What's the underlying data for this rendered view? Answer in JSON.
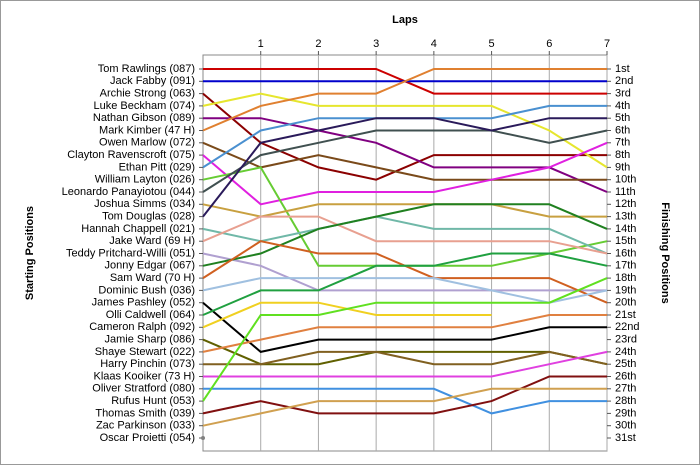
{
  "chart_data": {
    "type": "bump",
    "x_label": "Laps",
    "y_label": "Starting Positions",
    "y2_label": "Finishing Positions",
    "xlim": [
      0,
      7
    ],
    "xticks": [
      1,
      2,
      3,
      4,
      5,
      6,
      7
    ],
    "ylim": [
      1,
      31
    ],
    "grid": true,
    "finish_labels": [
      "1st",
      "2nd",
      "3rd",
      "4th",
      "5th",
      "6th",
      "7th",
      "8th",
      "9th",
      "10th",
      "11th",
      "12th",
      "13th",
      "14th",
      "15th",
      "16th",
      "17th",
      "18th",
      "19th",
      "20th",
      "21st",
      "22nd",
      "23rd",
      "24th",
      "25th",
      "26th",
      "27th",
      "28th",
      "29th",
      "30th",
      "31st"
    ],
    "x": [
      0,
      1,
      2,
      3,
      4,
      5,
      6,
      7
    ],
    "series": [
      {
        "name": "Tom Rawlings (087)",
        "color": "#cc0000",
        "values": [
          1,
          1,
          1,
          1,
          3,
          3,
          3,
          3
        ]
      },
      {
        "name": "Jack Fabby (091)",
        "color": "#0000cc",
        "values": [
          2,
          2,
          2,
          2,
          2,
          2,
          2,
          2
        ]
      },
      {
        "name": "Archie Strong (063)",
        "color": "#8b0000",
        "values": [
          3,
          7,
          9,
          10,
          8,
          8,
          8,
          8
        ]
      },
      {
        "name": "Luke Beckham (074)",
        "color": "#e6e62e",
        "values": [
          4,
          3,
          4,
          4,
          4,
          4,
          6,
          9
        ]
      },
      {
        "name": "Nathan Gibson (089)",
        "color": "#800080",
        "values": [
          5,
          5,
          6,
          7,
          9,
          9,
          9,
          11
        ]
      },
      {
        "name": "Mark Kimber (47 H)",
        "color": "#e08030",
        "values": [
          6,
          4,
          3,
          3,
          1,
          1,
          1,
          1
        ]
      },
      {
        "name": "Owen Marlow (072)",
        "color": "#7a4a1a",
        "values": [
          7,
          9,
          8,
          9,
          10,
          10,
          10,
          10
        ]
      },
      {
        "name": "Clayton Ravenscroft (075)",
        "color": "#e020e0",
        "values": [
          8,
          12,
          11,
          11,
          11,
          10,
          9,
          7
        ]
      },
      {
        "name": "Ethan Pitt (029)",
        "color": "#4a90d0",
        "values": [
          9,
          6,
          5,
          5,
          5,
          5,
          4,
          4
        ]
      },
      {
        "name": "William Layton (026)",
        "color": "#66cc33",
        "values": [
          10,
          9,
          17,
          17,
          17,
          17,
          16,
          15
        ]
      },
      {
        "name": "Leonardo Panayiotou (044)",
        "color": "#405050",
        "values": [
          11,
          8,
          7,
          6,
          6,
          6,
          7,
          6
        ]
      },
      {
        "name": "Joshua Simms (034)",
        "color": "#c8a040",
        "values": [
          12,
          13,
          12,
          12,
          12,
          12,
          13,
          13
        ]
      },
      {
        "name": "Tom Douglas (028)",
        "color": "#2a1a5a",
        "values": [
          13,
          7,
          6,
          5,
          5,
          6,
          5,
          5
        ]
      },
      {
        "name": "Hannah Chappell (021)",
        "color": "#70b8a8",
        "values": [
          14,
          15,
          14,
          13,
          14,
          14,
          14,
          16
        ]
      },
      {
        "name": "Jake Ward (69 H)",
        "color": "#e8a090",
        "values": [
          15,
          13,
          13,
          15,
          15,
          15,
          15,
          16
        ]
      },
      {
        "name": "Teddy Pritchard-Willi (051)",
        "color": "#b0a0d0",
        "values": [
          16,
          17,
          19,
          19,
          19,
          19,
          19,
          19
        ]
      },
      {
        "name": "Jonny Edgar (067)",
        "color": "#208020",
        "values": [
          17,
          16,
          14,
          13,
          12,
          12,
          12,
          14
        ]
      },
      {
        "name": "Sam Ward (70 H)",
        "color": "#d06020",
        "values": [
          18,
          15,
          16,
          16,
          18,
          18,
          18,
          20
        ]
      },
      {
        "name": "Dominic Bush (036)",
        "color": "#a0c0e0",
        "values": [
          19,
          18,
          18,
          18,
          18,
          19,
          20,
          19
        ]
      },
      {
        "name": "James Pashley (052)",
        "color": "#000000",
        "values": [
          20,
          24,
          23,
          23,
          23,
          23,
          22,
          22
        ]
      },
      {
        "name": "Olli Caldwell (064)",
        "color": "#20a040",
        "values": [
          21,
          19,
          19,
          17,
          17,
          16,
          16,
          17
        ]
      },
      {
        "name": "Cameron Ralph (092)",
        "color": "#f0d020",
        "values": [
          22,
          20,
          20,
          21,
          21,
          21,
          null,
          null
        ]
      },
      {
        "name": "Jamie Sharp (086)",
        "color": "#606000",
        "values": [
          23,
          25,
          25,
          24,
          24,
          24,
          24,
          25
        ]
      },
      {
        "name": "Shaye Stewart (022)",
        "color": "#e08040",
        "values": [
          24,
          23,
          22,
          22,
          22,
          22,
          21,
          21
        ]
      },
      {
        "name": "Harry Pinchin (073)",
        "color": "#806020",
        "values": [
          25,
          25,
          24,
          24,
          25,
          25,
          24,
          25
        ]
      },
      {
        "name": "Klaas Kooiker (73 H)",
        "color": "#e040e0",
        "values": [
          26,
          26,
          26,
          26,
          26,
          26,
          25,
          24
        ]
      },
      {
        "name": "Oliver Stratford (080)",
        "color": "#4090e0",
        "values": [
          27,
          27,
          27,
          27,
          27,
          29,
          28,
          28
        ]
      },
      {
        "name": "Rufus Hunt (053)",
        "color": "#60e020",
        "values": [
          28,
          21,
          21,
          20,
          20,
          20,
          20,
          18
        ]
      },
      {
        "name": "Thomas Smith (039)",
        "color": "#801010",
        "values": [
          29,
          28,
          29,
          29,
          29,
          28,
          26,
          26
        ]
      },
      {
        "name": "Zac Parkinson (033)",
        "color": "#d0a050",
        "values": [
          30,
          29,
          28,
          28,
          28,
          27,
          27,
          27
        ]
      },
      {
        "name": "Oscar Proietti (054)",
        "color": "#808080",
        "values": [
          31,
          null,
          null,
          null,
          null,
          null,
          null,
          null
        ]
      }
    ]
  }
}
